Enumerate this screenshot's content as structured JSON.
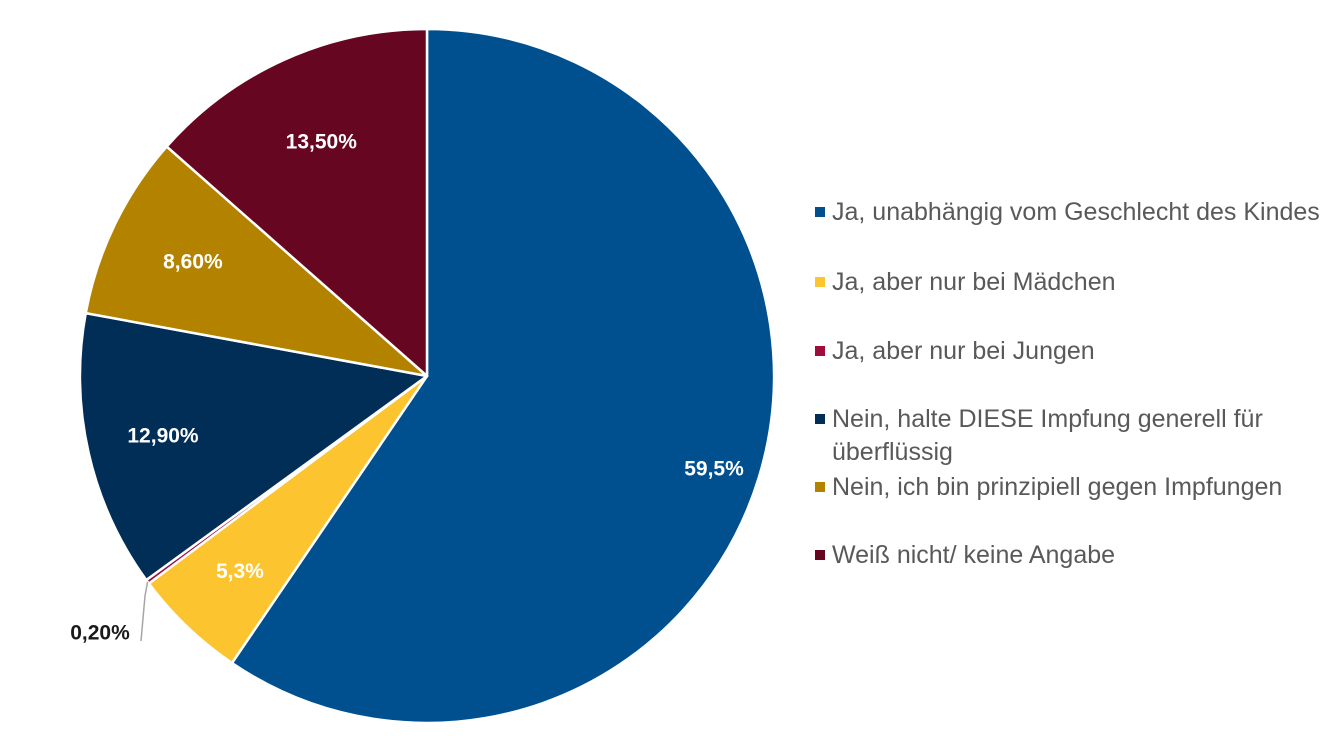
{
  "chart_data": {
    "type": "pie",
    "categories": [
      "Ja, unabhängig vom Geschlecht des Kindes",
      "Ja, aber nur bei Mädchen",
      "Ja, aber nur bei Jungen",
      "Nein, halte DIESE Impfung generell für überflüssig",
      "Nein, ich bin prinzipiell gegen Impfungen",
      "Weiß nicht/ keine Angabe"
    ],
    "values": [
      59.5,
      5.3,
      0.2,
      12.9,
      8.6,
      13.5
    ],
    "data_labels": [
      "59,5%",
      "5,3%",
      "0,20%",
      "12,90%",
      "8,60%",
      "13,50%"
    ],
    "colors": [
      "#00508F",
      "#FCC42E",
      "#A10D3A",
      "#012E57",
      "#B38300",
      "#670620"
    ],
    "label_colors": [
      "#ffffff",
      "#ffffff",
      "#1a1a1a",
      "#ffffff",
      "#ffffff",
      "#ffffff"
    ],
    "start_angle_deg": 0,
    "direction": "clockwise",
    "legend_position": "right",
    "title": ""
  }
}
